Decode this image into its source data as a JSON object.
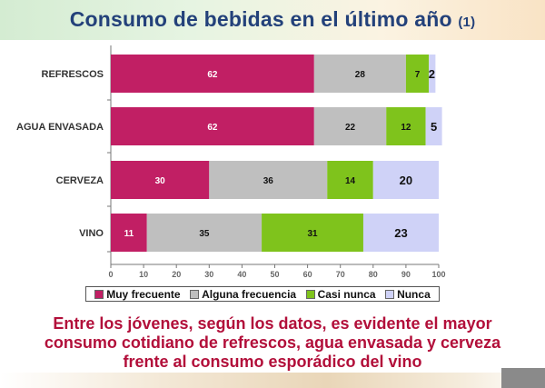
{
  "title": {
    "main": "Consumo de bebidas en el último año",
    "sub": "(1)"
  },
  "chart_data": {
    "type": "bar",
    "orientation": "horizontal",
    "stacked": true,
    "categories": [
      "REFRESCOS",
      "AGUA ENVASADA",
      "CERVEZA",
      "VINO"
    ],
    "series": [
      {
        "name": "Muy frecuente",
        "values": [
          62,
          62,
          30,
          11
        ],
        "color": "#c11f64"
      },
      {
        "name": "Alguna frecuencia",
        "values": [
          28,
          22,
          36,
          35
        ],
        "color": "#bfbfbf"
      },
      {
        "name": "Casi nunca",
        "values": [
          7,
          12,
          14,
          31
        ],
        "color": "#7fc31c"
      },
      {
        "name": "Nunca",
        "values": [
          2,
          5,
          20,
          23
        ],
        "color": "#cfd2f7"
      }
    ],
    "xlim": [
      0,
      100
    ],
    "xticks": [
      0,
      10,
      20,
      30,
      40,
      50,
      60,
      70,
      80,
      90,
      100
    ],
    "grid": false,
    "legend_position": "bottom"
  },
  "conclusion": {
    "lines": [
      "Entre los jóvenes, según los datos, es evidente el mayor",
      "consumo cotidiano de refrescos, agua envasada y cerveza",
      "frente al consumo esporádico del vino"
    ]
  }
}
